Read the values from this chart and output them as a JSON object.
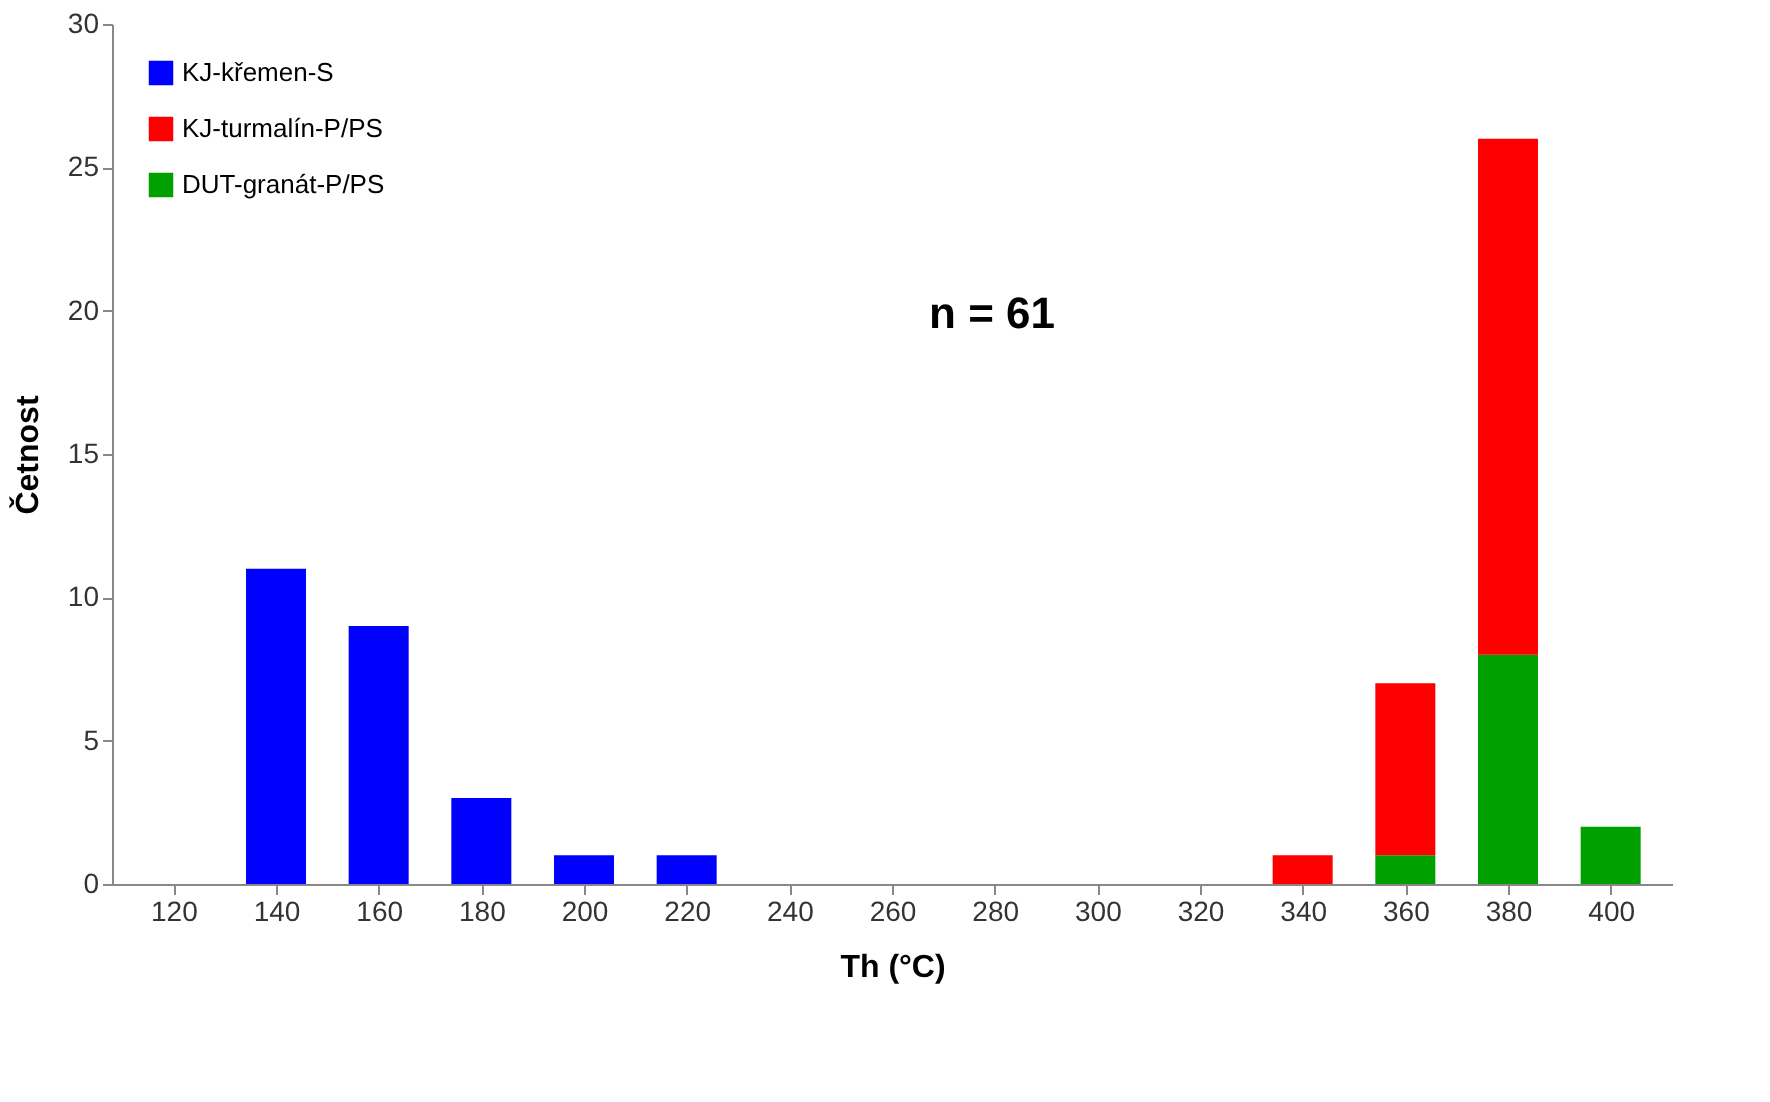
{
  "chart_data": {
    "type": "bar",
    "stacked": true,
    "xlabel": "Th (°C)",
    "ylabel": "Četnost",
    "categories": [
      "120",
      "140",
      "160",
      "180",
      "200",
      "220",
      "240",
      "260",
      "280",
      "300",
      "320",
      "340",
      "360",
      "380",
      "400"
    ],
    "series": [
      {
        "name": "DUT-granát-P/PS",
        "color": "#00a000",
        "values": [
          null,
          null,
          null,
          null,
          null,
          null,
          null,
          null,
          null,
          null,
          null,
          null,
          1,
          8,
          2
        ]
      },
      {
        "name": "KJ-turmalín-P/PS",
        "color": "#ff0000",
        "values": [
          null,
          null,
          null,
          null,
          null,
          null,
          null,
          null,
          null,
          null,
          null,
          1,
          6,
          18,
          null
        ]
      },
      {
        "name": "KJ-křemen-S",
        "color": "#0000ff",
        "values": [
          null,
          11,
          9,
          3,
          1,
          1,
          null,
          null,
          null,
          null,
          null,
          null,
          null,
          null,
          null
        ]
      }
    ],
    "ylim": [
      0,
      30
    ],
    "yticks": [
      0,
      5,
      10,
      15,
      20,
      25,
      30
    ],
    "grid": false,
    "legend": "top left",
    "annotations": [
      "n = 61"
    ]
  }
}
